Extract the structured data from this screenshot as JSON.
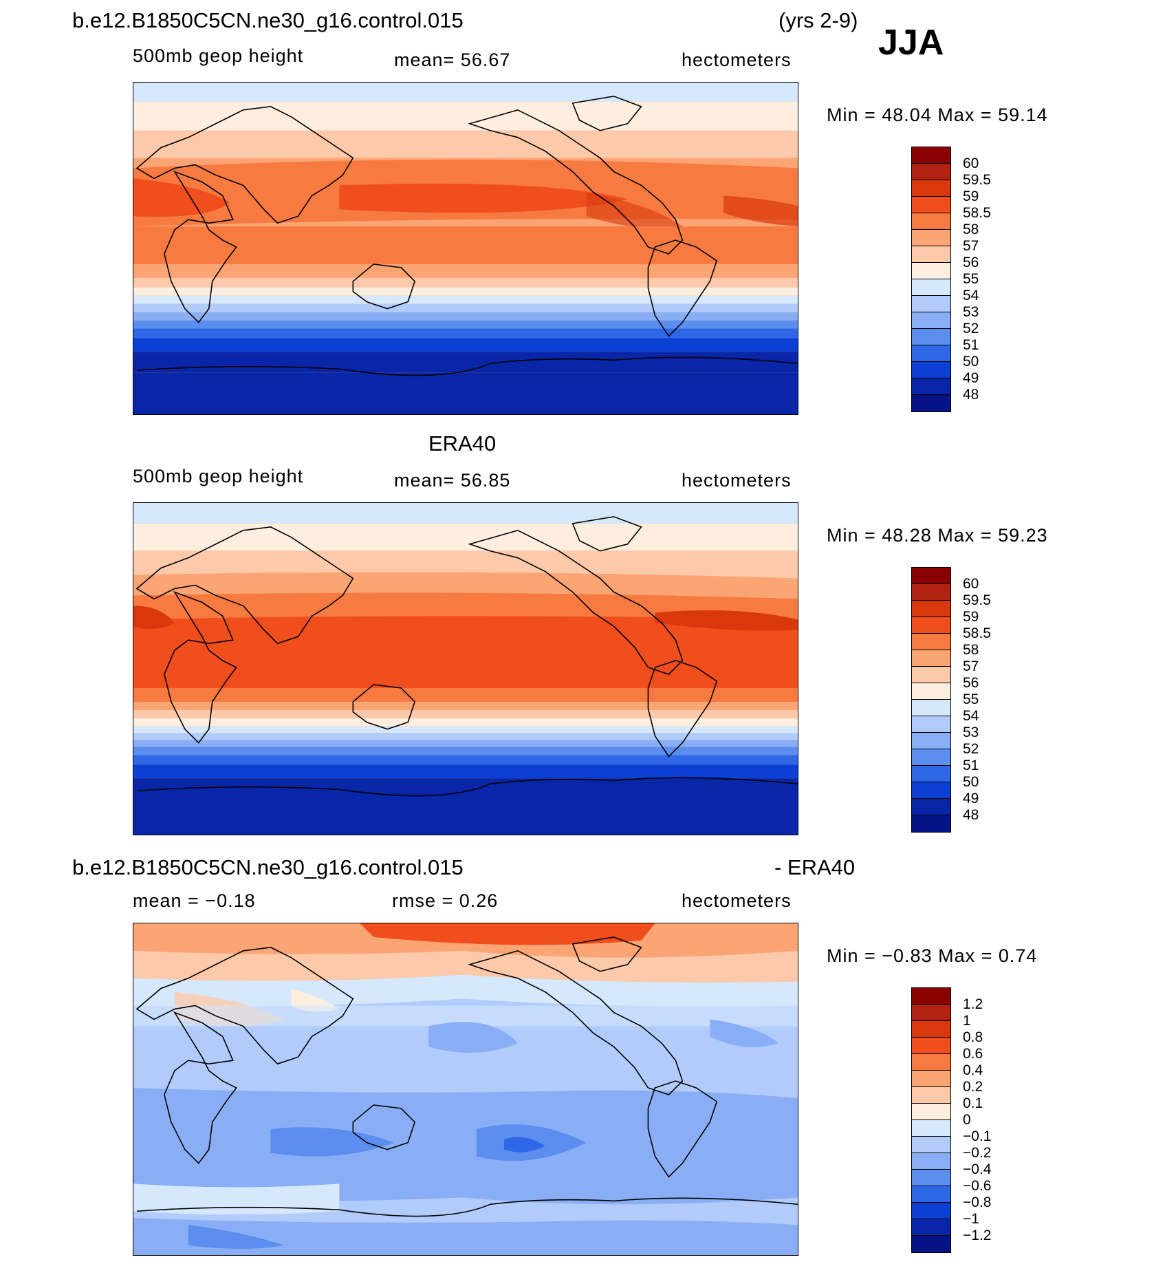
{
  "header": {
    "case_title": "b.e12.B1850C5CN.ne30_g16.control.015",
    "years": "(yrs 2-9)",
    "season": "JJA"
  },
  "panels": [
    {
      "title": "",
      "left_label": "500mb geop height",
      "center_label": "mean=   56.67",
      "units": "hectometers",
      "minmax": "Min =    48.04  Max =    59.14",
      "colorbar_labels": [
        "60",
        "59.5",
        "59",
        "58.5",
        "58",
        "57",
        "56",
        "55",
        "54",
        "53",
        "52",
        "51",
        "50",
        "49",
        "48"
      ]
    },
    {
      "title": "ERA40",
      "left_label": "500mb geop height",
      "center_label": "mean=   56.85",
      "units": "hectometers",
      "minmax": "Min =    48.28  Max =    59.23",
      "colorbar_labels": [
        "60",
        "59.5",
        "59",
        "58.5",
        "58",
        "57",
        "56",
        "55",
        "54",
        "53",
        "52",
        "51",
        "50",
        "49",
        "48"
      ]
    },
    {
      "title": "b.e12.B1850C5CN.ne30_g16.control.015",
      "title_right": "- ERA40",
      "left_label": "mean =   −0.18",
      "center_label": "rmse =    0.26",
      "units": "hectometers",
      "minmax": "Min =   −0.83  Max =     0.74",
      "colorbar_labels": [
        "1.2",
        "1",
        "0.8",
        "0.6",
        "0.4",
        "0.2",
        "0.1",
        "0",
        "−0.1",
        "−0.2",
        "−0.4",
        "−0.6",
        "−0.8",
        "−1",
        "−1.2"
      ]
    }
  ],
  "colors": {
    "colorbar_swatches": [
      "#8b0000",
      "#b22210",
      "#d8380c",
      "#f04e1c",
      "#f77a40",
      "#fba474",
      "#fcc9aa",
      "#fdeee0",
      "#d6e8fc",
      "#b1cbfa",
      "#8aaef6",
      "#5c8ef0",
      "#2f68e6",
      "#0c3fd3",
      "#0926a8",
      "#061386"
    ]
  }
}
